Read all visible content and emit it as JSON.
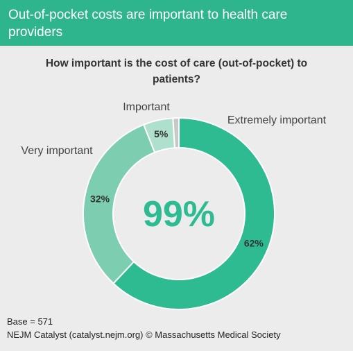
{
  "header": {
    "title": "Out-of-pocket costs are important to health care providers"
  },
  "chart_data": {
    "type": "pie",
    "subtitle": "How important is the cost of care (out-of-pocket) to patients?",
    "center_label": "99%",
    "slices": [
      {
        "name": "Extremely important",
        "value": 62,
        "label": "62%",
        "color": "#2ebb92"
      },
      {
        "name": "Very important",
        "value": 32,
        "label": "32%",
        "color": "#7dceb1"
      },
      {
        "name": "Important",
        "value": 5,
        "label": "5%",
        "color": "#afe0cd"
      },
      {
        "name": "",
        "value": 1,
        "label": "",
        "color": "#c8c8c8"
      }
    ]
  },
  "footer": {
    "base": "Base = 571",
    "credit": "NEJM Catalyst (catalyst.nejm.org) © Massachusetts Medical Society"
  }
}
